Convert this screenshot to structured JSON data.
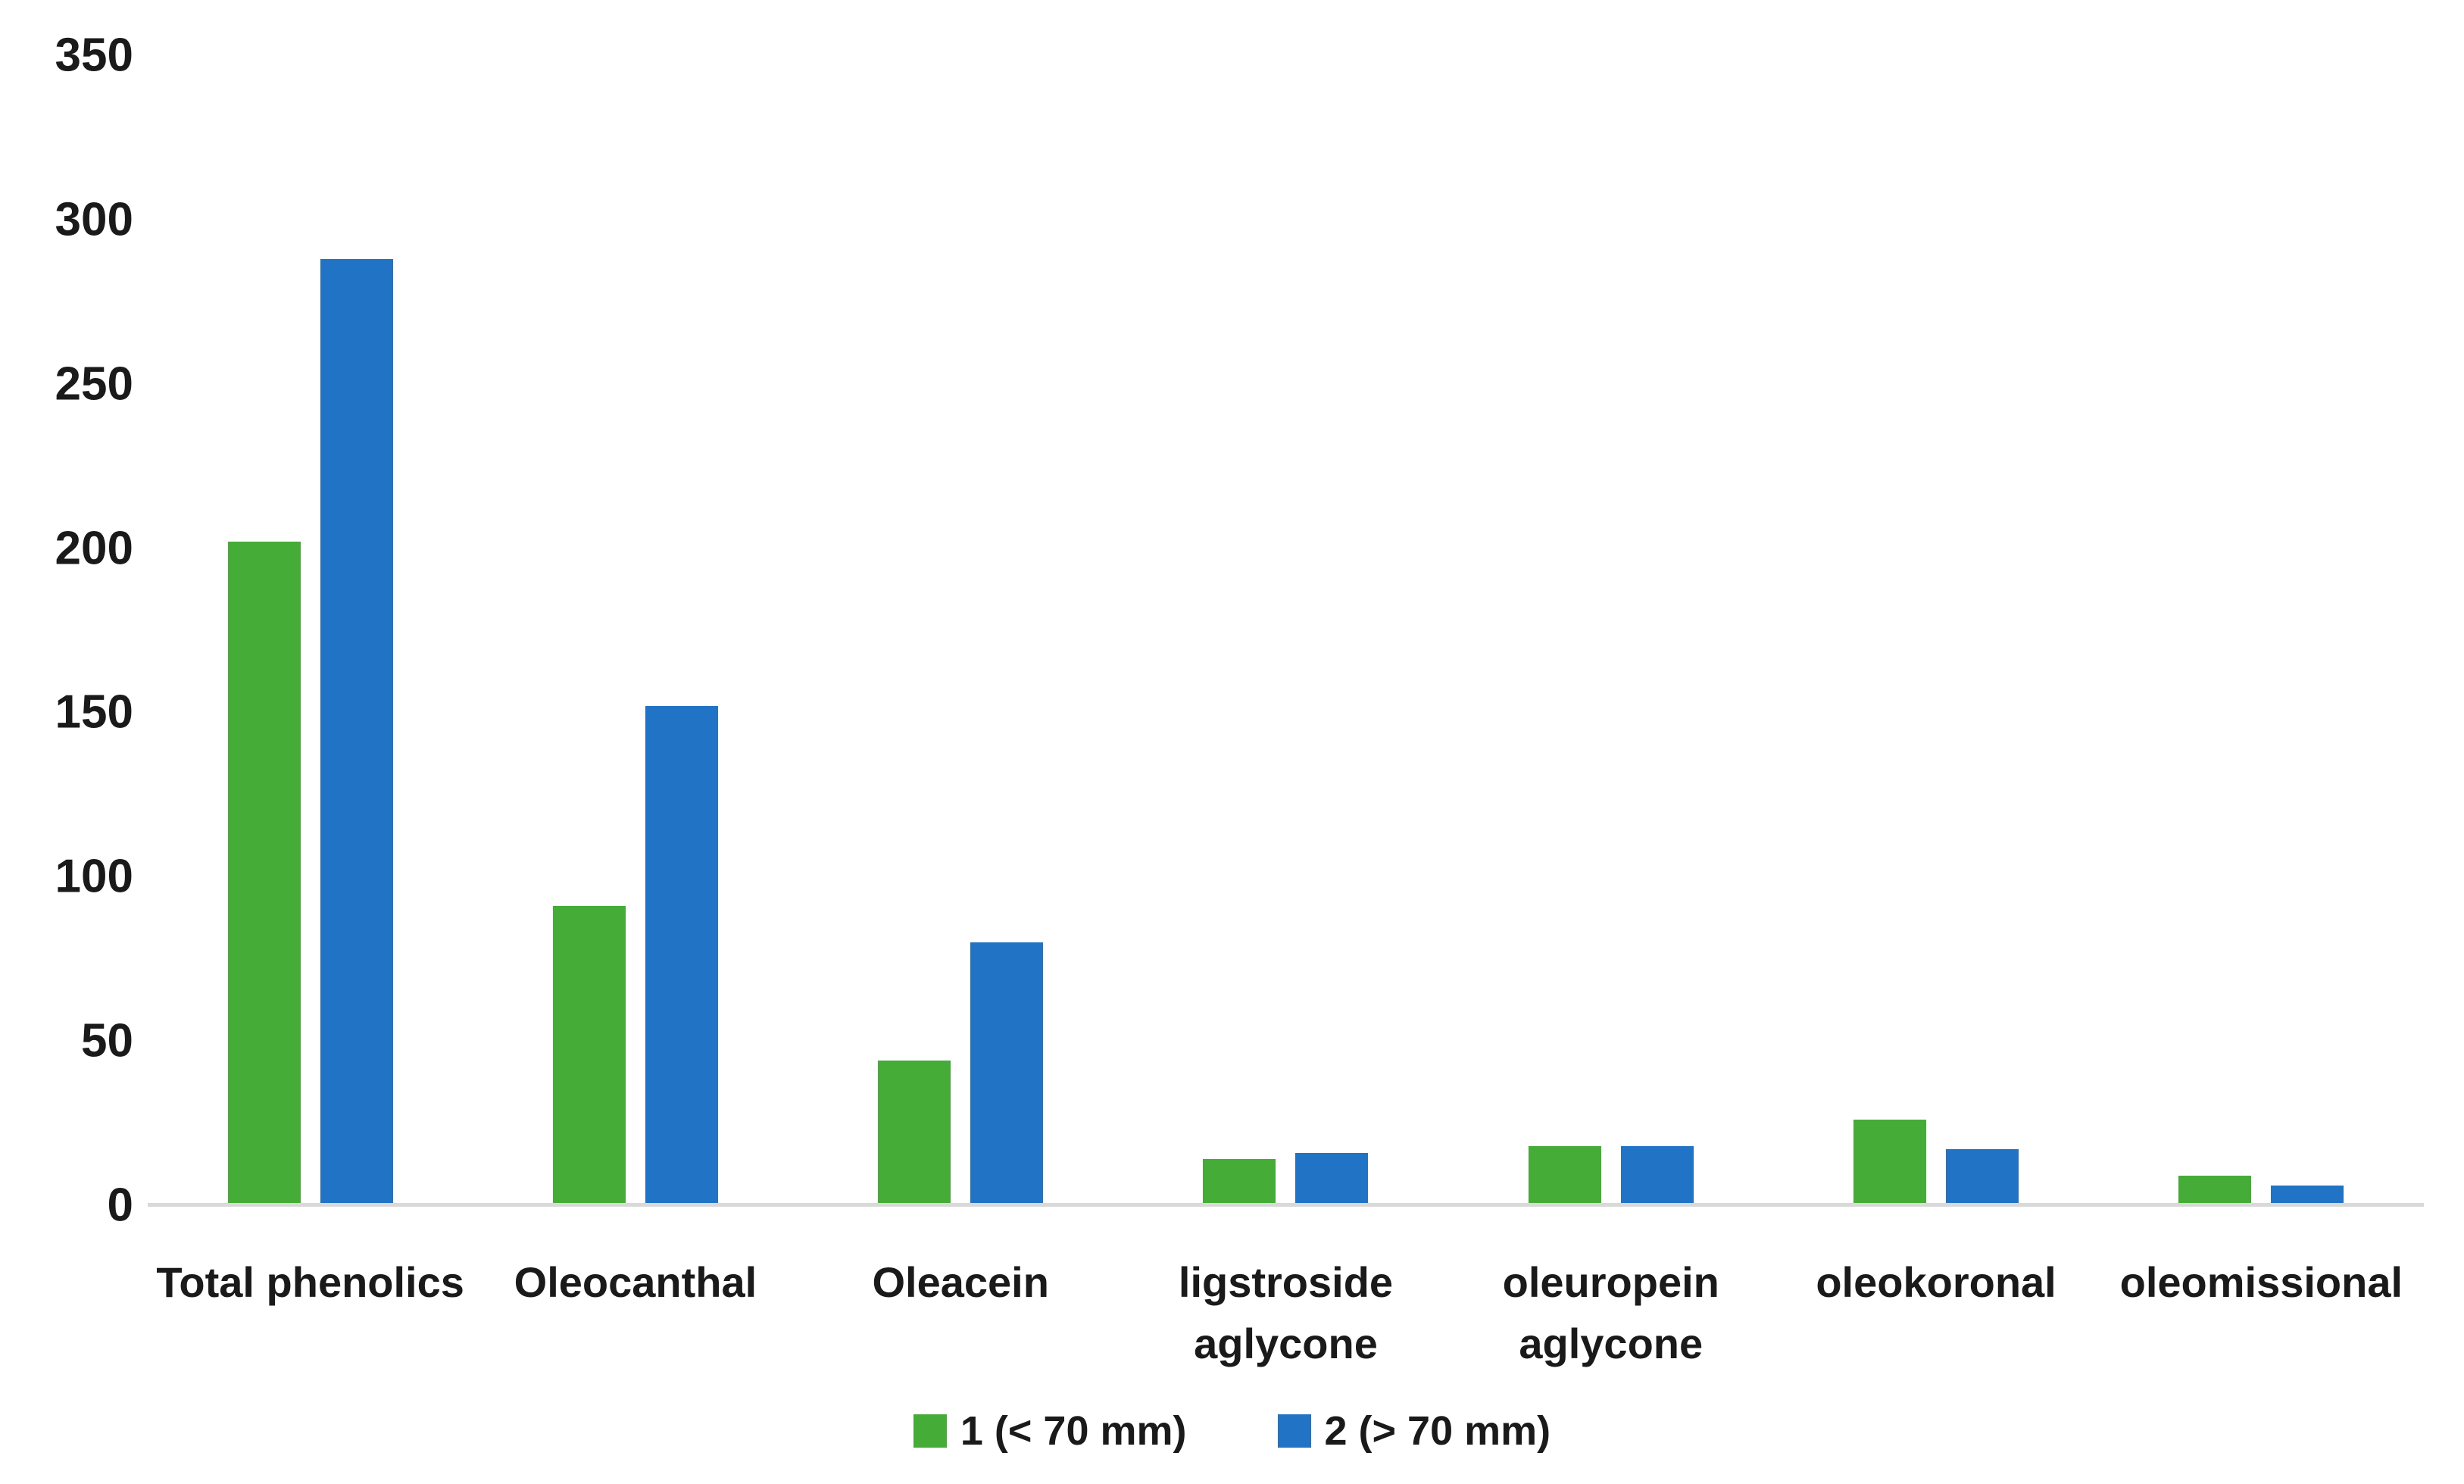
{
  "chart_data": {
    "type": "bar",
    "categories": [
      "Total phenolics",
      "Oleocanthal",
      "Oleacein",
      "ligstroside aglycone",
      "oleuropein aglycone",
      "oleokoronal",
      "oleomissional"
    ],
    "series": [
      {
        "name": "1 (< 70 mm)",
        "color": "#45ac38",
        "values": [
          202,
          91,
          44,
          14,
          18,
          26,
          9
        ]
      },
      {
        "name": "2 (> 70 mm)",
        "color": "#2173c6",
        "values": [
          288,
          152,
          80,
          16,
          18,
          17,
          6
        ]
      }
    ],
    "title": "",
    "xlabel": "",
    "ylabel": "",
    "ylim": [
      0,
      350
    ],
    "yticks": [
      0,
      50,
      100,
      150,
      200,
      250,
      300,
      350
    ],
    "grid": "off",
    "legend_position": "bottom-center",
    "axis_line_color": "#d9d9d9",
    "text_color": "#1a1a1a",
    "background_color": "#ffffff"
  }
}
